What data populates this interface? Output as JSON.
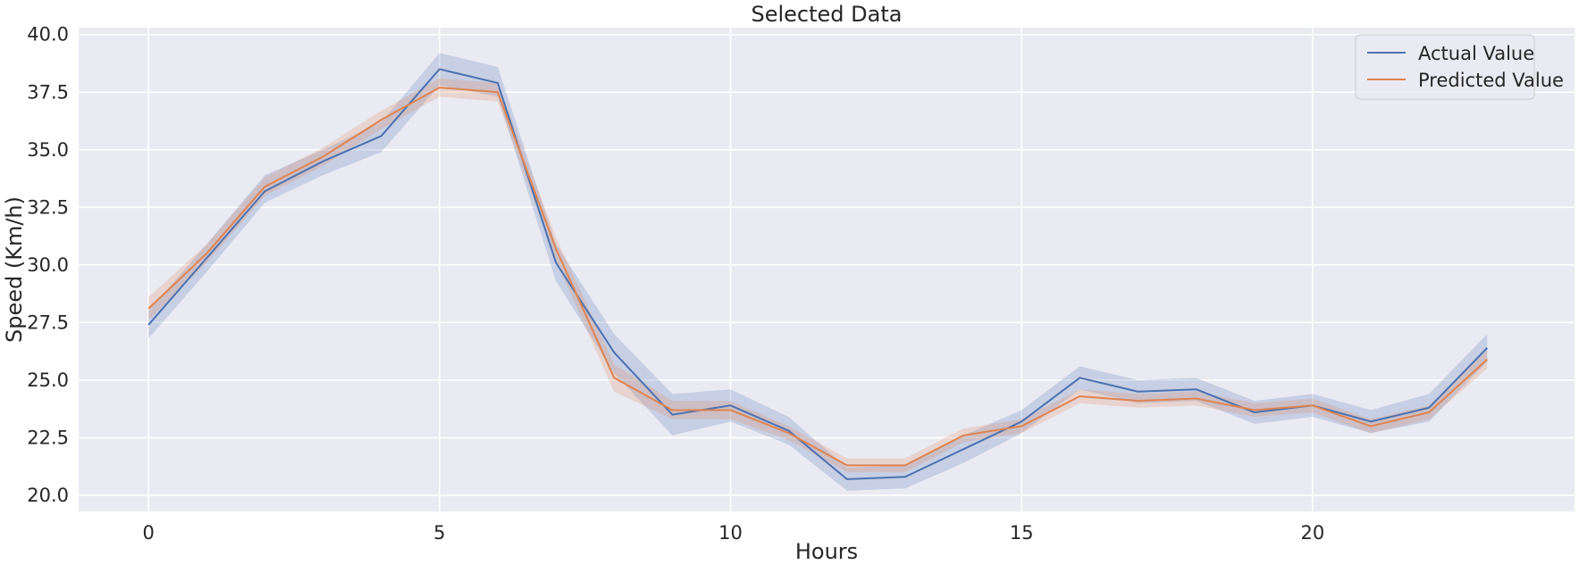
{
  "chart_data": {
    "type": "line",
    "title": "Selected Data",
    "xlabel": "Hours",
    "ylabel": "Speed (Km/h)",
    "xlim": [
      -1.2,
      24.5
    ],
    "ylim": [
      19.3,
      40.3
    ],
    "xticks": [
      0,
      5,
      10,
      15,
      20
    ],
    "xtick_labels": [
      "0",
      "5",
      "10",
      "15",
      "20"
    ],
    "yticks": [
      20.0,
      22.5,
      25.0,
      27.5,
      30.0,
      32.5,
      35.0,
      37.5,
      40.0
    ],
    "ytick_labels": [
      "20.0",
      "22.5",
      "25.0",
      "27.5",
      "30.0",
      "32.5",
      "35.0",
      "37.5",
      "40.0"
    ],
    "grid": true,
    "legend_position": "top-right",
    "x": [
      0,
      1,
      2,
      3,
      4,
      5,
      6,
      7,
      8,
      9,
      10,
      11,
      12,
      13,
      14,
      15,
      16,
      17,
      18,
      19,
      20,
      21,
      22,
      23
    ],
    "series": [
      {
        "name": "Actual Value",
        "color": "#4c72b0",
        "values": [
          27.4,
          30.3,
          33.2,
          34.5,
          35.6,
          38.5,
          37.9,
          30.1,
          26.2,
          23.5,
          23.9,
          22.8,
          20.7,
          20.8,
          22.0,
          23.2,
          25.1,
          24.5,
          24.6,
          23.6,
          23.9,
          23.2,
          23.8,
          26.4
        ],
        "ci_lower": [
          26.8,
          29.7,
          32.7,
          33.9,
          34.9,
          37.8,
          37.3,
          29.3,
          25.3,
          22.6,
          23.2,
          22.2,
          20.2,
          20.3,
          21.4,
          22.7,
          24.6,
          24.0,
          24.1,
          23.1,
          23.4,
          22.7,
          23.2,
          25.8
        ],
        "ci_upper": [
          28.0,
          30.9,
          33.9,
          35.0,
          36.2,
          39.2,
          38.6,
          30.9,
          27.0,
          24.4,
          24.6,
          23.4,
          21.2,
          21.3,
          22.6,
          23.7,
          25.6,
          25.0,
          25.1,
          24.1,
          24.4,
          23.7,
          24.4,
          27.0
        ]
      },
      {
        "name": "Predicted Value",
        "color": "#dd8452",
        "values": [
          28.1,
          30.5,
          33.4,
          34.7,
          36.3,
          37.7,
          37.5,
          30.7,
          25.1,
          23.7,
          23.7,
          22.7,
          21.3,
          21.3,
          22.6,
          23.0,
          24.3,
          24.1,
          24.2,
          23.7,
          23.9,
          23.0,
          23.6,
          25.9
        ],
        "ci_lower": [
          27.6,
          30.1,
          33.0,
          34.3,
          35.9,
          37.3,
          37.1,
          30.2,
          24.5,
          23.3,
          23.3,
          22.4,
          21.0,
          21.0,
          22.3,
          22.7,
          24.0,
          23.8,
          23.9,
          23.4,
          23.6,
          22.7,
          23.3,
          25.5
        ],
        "ci_upper": [
          28.6,
          30.9,
          33.8,
          35.1,
          36.7,
          38.1,
          37.9,
          31.2,
          25.7,
          24.1,
          24.1,
          23.0,
          21.6,
          21.6,
          22.9,
          23.3,
          24.6,
          24.4,
          24.5,
          24.0,
          24.2,
          23.3,
          23.9,
          26.3
        ]
      }
    ],
    "colors": {
      "plot_background": "#eaeaf2",
      "grid": "#ffffff"
    }
  }
}
